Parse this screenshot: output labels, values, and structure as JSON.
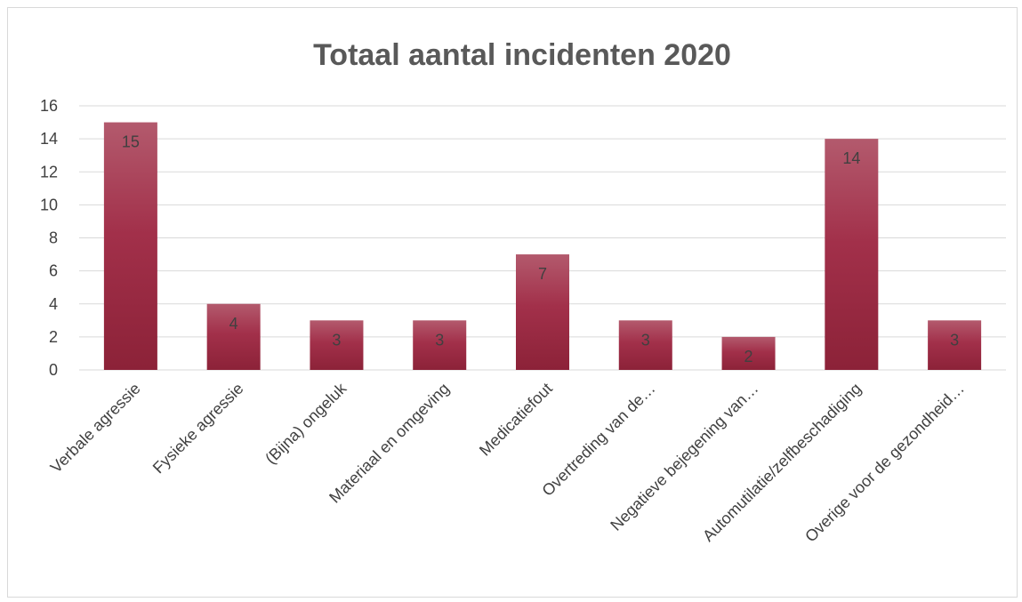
{
  "chart_data": {
    "type": "bar",
    "title": "Totaal aantal incidenten 2020",
    "xlabel": "",
    "ylabel": "",
    "categories": [
      "Verbale agressie",
      "Fysieke agressie",
      "(Bijna) ongeluk",
      "Materiaal en omgeving",
      "Medicatiefout",
      "Overtreding van de…",
      "Negatieve bejegening van…",
      "Automutilatie/zelfbeschadiging",
      "Overige voor de gezondheid…"
    ],
    "values": [
      15,
      4,
      3,
      3,
      7,
      3,
      2,
      14,
      3
    ],
    "data_labels": [
      "15",
      "4",
      "3",
      "3",
      "7",
      "3",
      "2",
      "14",
      "3"
    ],
    "ylim": [
      0,
      16
    ],
    "yticks": [
      0,
      2,
      4,
      6,
      8,
      10,
      12,
      14,
      16
    ],
    "grid": true,
    "legend": "none",
    "colors": {
      "bar_top": "#b35a6d",
      "bar_mid": "#a2304a",
      "bar_bottom": "#8c2238",
      "grid": "#d9d9d9",
      "text": "#404040",
      "title": "#595959"
    }
  }
}
